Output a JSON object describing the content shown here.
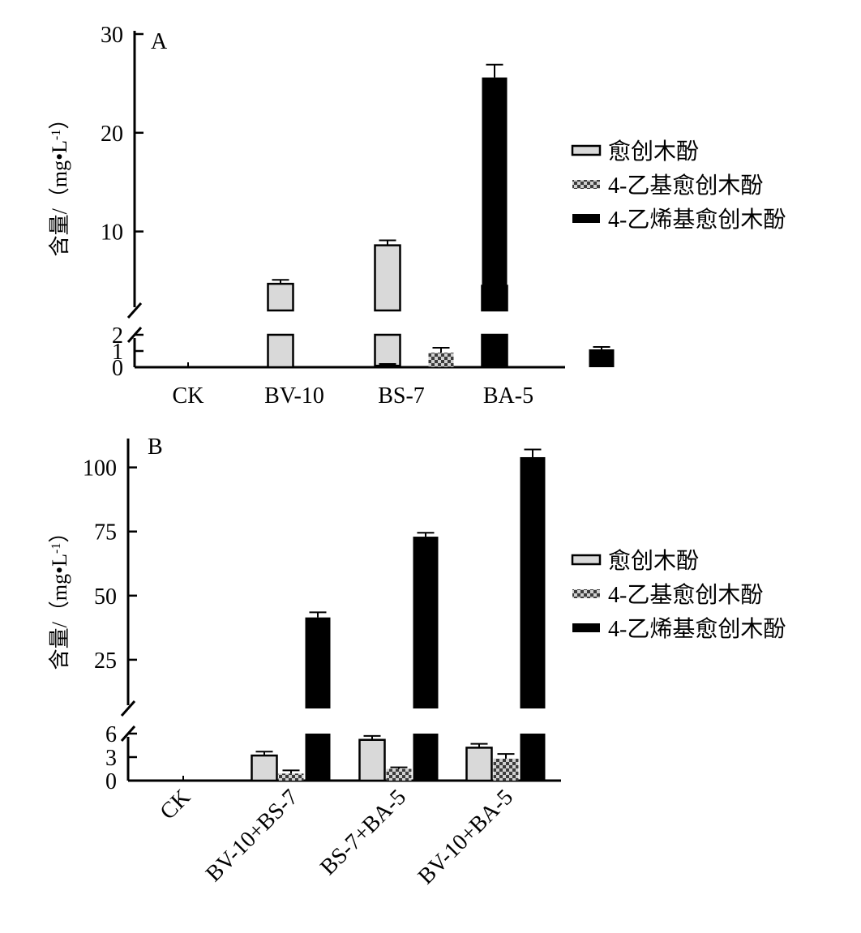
{
  "colors": {
    "guaiacol": "#d9d9d9",
    "ethyl": "#5a5a5a",
    "vinyl": "#000000",
    "axis": "#000000",
    "background": "#ffffff"
  },
  "chart_data": [
    {
      "type": "bar",
      "panel_label": "A",
      "ylabel_main": "含量/",
      "ylabel_unit_prefix": "（mg•L",
      "ylabel_unit_sup": "-1",
      "ylabel_unit_suffix": "）",
      "categories": [
        "CK",
        "BV-10",
        "BS-7",
        "BA-5"
      ],
      "y_upper_range": [
        2,
        30
      ],
      "y_lower_range": [
        0,
        2
      ],
      "y_upper_ticks": [
        "10",
        "20",
        "30"
      ],
      "y_lower_ticks": [
        "0",
        "1",
        "2"
      ],
      "axis_break": true,
      "legend_position": "right",
      "series": [
        {
          "name": "愈创木酚",
          "pattern": "light-gray",
          "values": [
            0,
            4.7,
            8.6,
            4.5
          ],
          "errors": [
            0,
            0.4,
            0.5,
            0.4
          ]
        },
        {
          "name": "4-乙基愈创木酚",
          "pattern": "checkered",
          "values": [
            0,
            0,
            0.9,
            0
          ],
          "errors": [
            0,
            0,
            0.3,
            0
          ]
        },
        {
          "name": "4-乙烯基愈创木酚",
          "pattern": "solid-black",
          "values": [
            0,
            0.15,
            25.6,
            1.1
          ],
          "errors": [
            0,
            0.05,
            1.3,
            0.15
          ]
        }
      ]
    },
    {
      "type": "bar",
      "panel_label": "B",
      "ylabel_main": "含量/",
      "ylabel_unit_prefix": "（mg•L",
      "ylabel_unit_sup": "-1",
      "ylabel_unit_suffix": "）",
      "categories": [
        "CK",
        "BV-10+BS-7",
        "BS-7+BA-5",
        "BV-10+BA-5"
      ],
      "y_upper_range": [
        6,
        110
      ],
      "y_lower_range": [
        0,
        6
      ],
      "y_upper_ticks": [
        "25",
        "50",
        "75",
        "100"
      ],
      "y_lower_ticks": [
        "0",
        "3",
        "6"
      ],
      "axis_break": true,
      "legend_position": "right",
      "series": [
        {
          "name": "愈创木酚",
          "pattern": "light-gray",
          "values": [
            0,
            3.2,
            5.2,
            4.2
          ],
          "errors": [
            0,
            0.5,
            0.5,
            0.5
          ]
        },
        {
          "name": "4-乙基愈创木酚",
          "pattern": "checkered",
          "values": [
            0,
            0.9,
            1.5,
            2.8
          ],
          "errors": [
            0,
            0.4,
            0.2,
            0.6
          ]
        },
        {
          "name": "4-乙烯基愈创木酚",
          "pattern": "solid-black",
          "values": [
            0,
            41.5,
            73,
            104
          ],
          "errors": [
            0,
            2,
            1.5,
            3
          ]
        }
      ]
    }
  ]
}
